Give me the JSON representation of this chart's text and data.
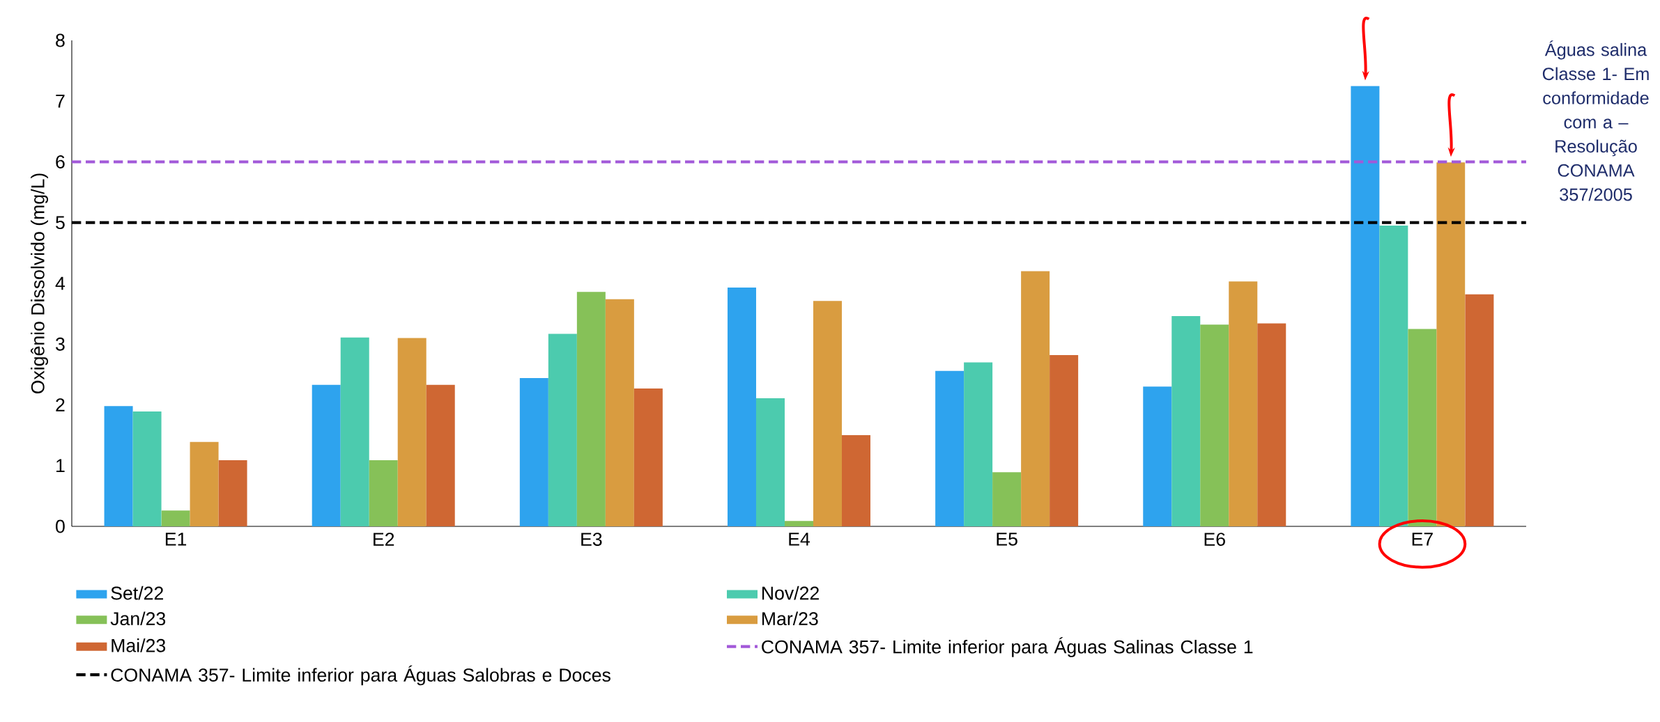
{
  "chart_data": {
    "type": "bar",
    "categories": [
      "E1",
      "E2",
      "E3",
      "E4",
      "E5",
      "E6",
      "E7"
    ],
    "ylabel": "Oxigênio Dissolvido (mg/L)",
    "ylim": [
      0,
      8
    ],
    "yticks": [
      0,
      1,
      2,
      3,
      4,
      5,
      6,
      7,
      8
    ],
    "series": [
      {
        "name": "Set/22",
        "color": "#2ea3ee",
        "values": [
          1.98,
          2.33,
          2.44,
          3.93,
          2.56,
          2.3,
          7.25
        ]
      },
      {
        "name": "Nov/22",
        "color": "#4ccbae",
        "values": [
          1.89,
          3.11,
          3.17,
          2.11,
          2.7,
          3.46,
          4.95
        ]
      },
      {
        "name": "Jan/23",
        "color": "#86c158",
        "values": [
          0.26,
          1.09,
          3.86,
          0.09,
          0.89,
          3.32,
          3.25
        ]
      },
      {
        "name": "Mar/23",
        "color": "#d99c40",
        "values": [
          1.39,
          3.1,
          3.74,
          3.71,
          4.2,
          4.03,
          5.99
        ]
      },
      {
        "name": "Mai/23",
        "color": "#cf6733",
        "values": [
          1.09,
          2.33,
          2.27,
          1.5,
          2.82,
          3.34,
          3.82
        ]
      }
    ],
    "ref_lines": [
      {
        "axis": "y",
        "value": 6,
        "label": "CONAMA 357- Limite inferior para Águas Salinas Classe 1",
        "color": "#a259d9",
        "line_style": "dashed"
      },
      {
        "axis": "y",
        "value": 5,
        "label": "CONAMA 357- Limite inferior para Águas Salobras e Doces",
        "color": "#000000",
        "line_style": "dashed"
      }
    ],
    "legend": "bottom",
    "annotations": [
      "Águas salina Classe 1- Em conformidade com a – Resolução CONAMA 357/2005"
    ]
  }
}
